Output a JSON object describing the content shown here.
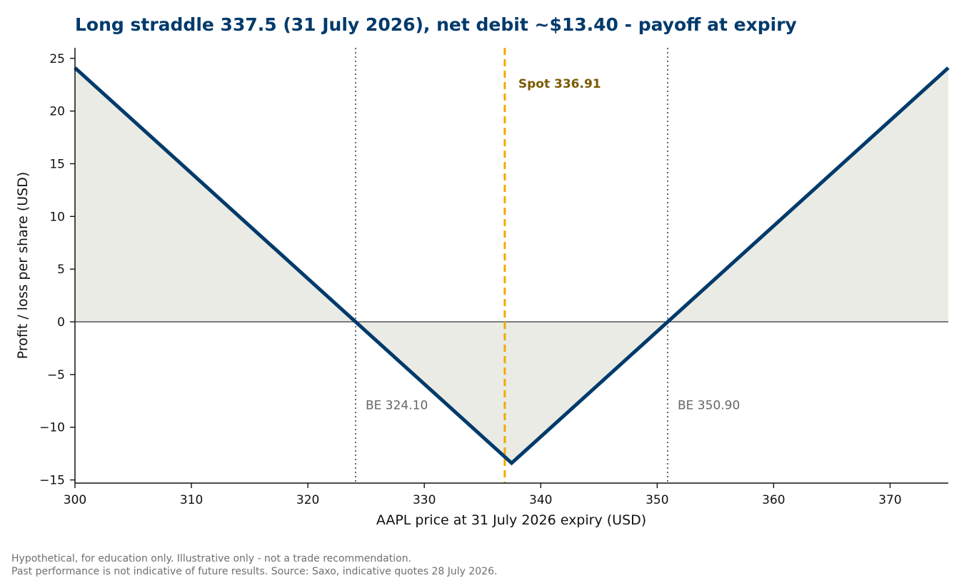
{
  "chart_data": {
    "type": "line",
    "title": "Long straddle 337.5 (31 July 2026), net debit ~$13.40 - payoff at expiry",
    "xlabel": "AAPL price at 31 July 2026 expiry (USD)",
    "ylabel": "Profit / loss per share (USD)",
    "xlim": [
      300,
      375
    ],
    "ylim": [
      -15.3,
      26
    ],
    "x_ticks": [
      300,
      310,
      320,
      330,
      340,
      350,
      360,
      370
    ],
    "y_ticks": [
      -15,
      -10,
      -5,
      0,
      5,
      10,
      15,
      20,
      25
    ],
    "strike": 337.5,
    "net_debit": 13.4,
    "spot": 336.91,
    "breakevens": [
      324.1,
      350.9
    ],
    "series": [
      {
        "x": [
          300,
          337.5,
          375
        ],
        "y": [
          24.1,
          -13.4,
          24.1
        ]
      }
    ],
    "annotations": {
      "spot_label": "Spot 336.91",
      "be_low_label": "BE 324.10",
      "be_high_label": "BE 350.90"
    },
    "colors": {
      "payoff_line": "#003a6b",
      "fill": "#e9ebe4",
      "spot_line": "#f2a900",
      "breakeven_lines": "#666666",
      "zero_line": "#555555",
      "title": "#003a6b"
    }
  },
  "footnotes": [
    "Hypothetical, for education only. Illustrative only - not a trade recommendation.",
    "Past performance is not indicative of future results. Source: Saxo, indicative quotes 28 July 2026."
  ]
}
